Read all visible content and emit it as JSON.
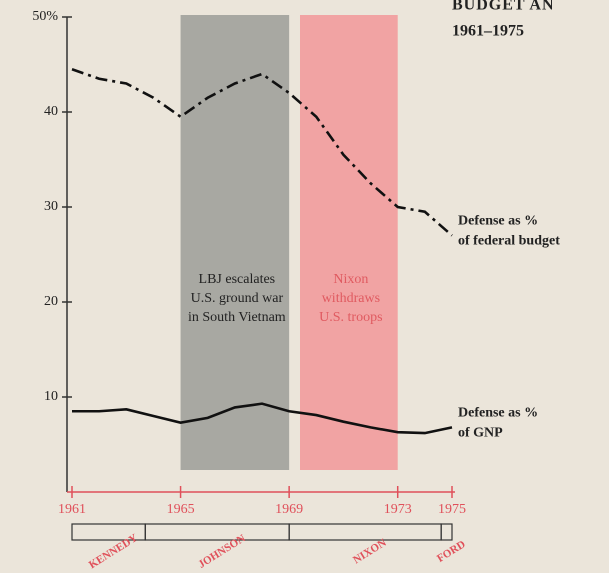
{
  "chart_data": {
    "type": "line",
    "title": "BUDGET AN",
    "subtitle": "1961–1975",
    "x": [
      1961,
      1962,
      1963,
      1964,
      1965,
      1966,
      1967,
      1968,
      1969,
      1970,
      1971,
      1972,
      1973,
      1974,
      1975
    ],
    "series": [
      {
        "name": [
          "Defense as %",
          "of federal budget"
        ],
        "color": "#111111",
        "dash": "dashdot",
        "values": [
          44.5,
          43.5,
          43,
          41.5,
          39.5,
          41.5,
          43,
          44,
          42,
          39.5,
          35.5,
          32.5,
          30,
          29.5,
          27
        ]
      },
      {
        "name": [
          "Defense as %",
          "of GNP"
        ],
        "color": "#111111",
        "dash": "solid",
        "values": [
          8.5,
          8.5,
          8.7,
          8,
          7.3,
          7.8,
          8.9,
          9.3,
          8.5,
          8.1,
          7.4,
          6.8,
          6.3,
          6.2,
          6.8
        ]
      }
    ],
    "xlim": [
      1961,
      1975
    ],
    "xticks": [
      1961,
      1965,
      1969,
      1973,
      1975
    ],
    "ylim": [
      0,
      50
    ],
    "yticks": [
      10,
      20,
      30,
      40,
      {
        "value": 50,
        "label": "50%"
      }
    ],
    "regions": [
      {
        "start": 1965,
        "end": 1969,
        "color": "#a8a8a2",
        "text_color": "#222222",
        "label": [
          "LBJ escalates",
          "U.S. ground war",
          "in South Vietnam"
        ]
      },
      {
        "start": 1969.4,
        "end": 1973,
        "color": "#f1a3a3",
        "text_color": "#e05a60",
        "label": [
          "Nixon",
          "withdraws",
          "U.S. troops"
        ]
      }
    ],
    "presidents": [
      {
        "name": "KENNEDY",
        "start": 1961,
        "end": 1963.7
      },
      {
        "name": "JOHNSON",
        "start": 1963.7,
        "end": 1969
      },
      {
        "name": "NIXON",
        "start": 1969,
        "end": 1974.6
      },
      {
        "name": "FORD",
        "start": 1974.6,
        "end": 1975
      }
    ]
  }
}
